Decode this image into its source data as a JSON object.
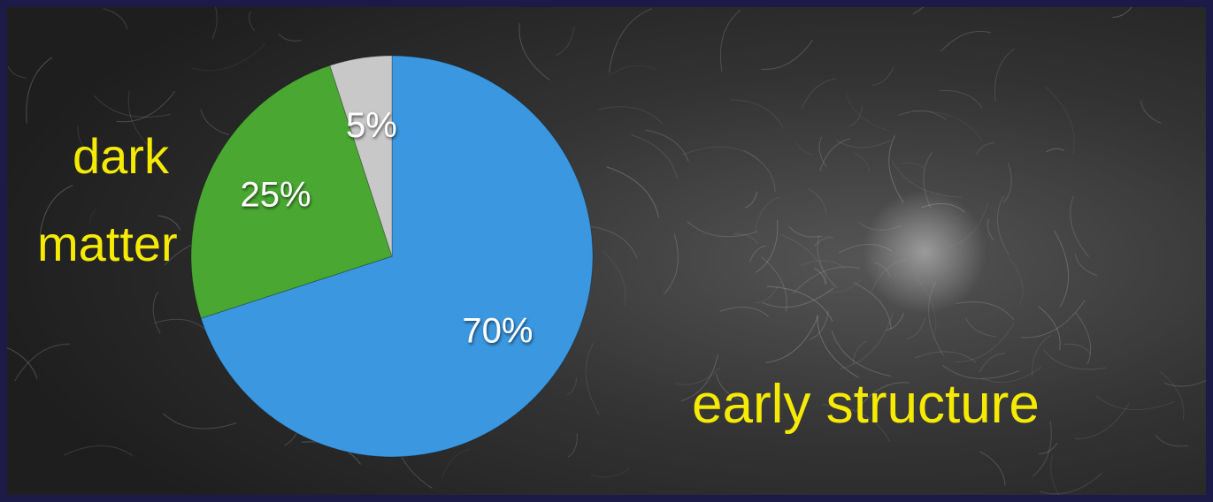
{
  "chart_data": {
    "type": "pie",
    "values": [
      70,
      25,
      5
    ],
    "value_labels": [
      "70%",
      "25%",
      "5%"
    ],
    "colors": [
      "#3a97e0",
      "#4aa832",
      "#c8c8c8"
    ],
    "annotations": [
      "dark",
      "matter",
      "early structure"
    ]
  }
}
